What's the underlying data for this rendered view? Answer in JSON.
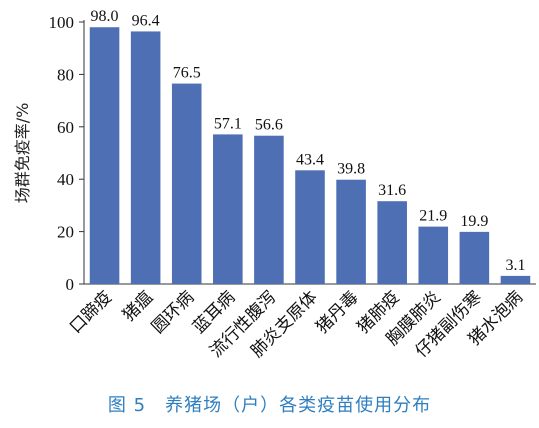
{
  "chart_data": {
    "type": "bar",
    "ylabel": "场群免疫率/%",
    "ylim": [
      0,
      100
    ],
    "yticks": [
      0,
      20,
      40,
      60,
      80,
      100
    ],
    "categories": [
      "口蹄疫",
      "猪瘟",
      "圆环病",
      "蓝耳病",
      "流行性腹泻",
      "肺炎支原体",
      "猪丹毒",
      "猪肺疫",
      "胸膜肺炎",
      "仔猪副伤寒",
      "猪水泡病"
    ],
    "values": [
      98.0,
      96.4,
      76.5,
      57.1,
      56.6,
      43.4,
      39.8,
      31.6,
      21.9,
      19.9,
      3.1
    ],
    "value_labels": [
      "98.0",
      "96.4",
      "76.5",
      "57.1",
      "56.6",
      "43.4",
      "39.8",
      "31.6",
      "21.9",
      "19.9",
      "3.1"
    ],
    "bar_color": "#4f6fb4",
    "grid": false
  },
  "caption": "图 5　养猪场（户）各类疫苗使用分布"
}
